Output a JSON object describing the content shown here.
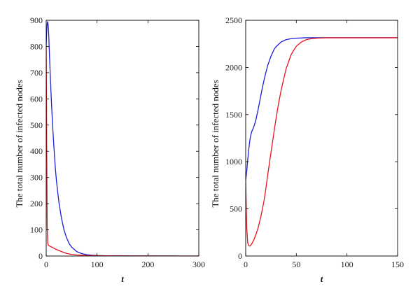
{
  "chart_data": [
    {
      "type": "line",
      "xlabel": "t",
      "ylabel": "The total number of infected nodes",
      "xlim": [
        0,
        300
      ],
      "ylim": [
        0,
        900
      ],
      "xticks": [
        0,
        100,
        200,
        300
      ],
      "yticks": [
        0,
        100,
        200,
        300,
        400,
        500,
        600,
        700,
        800,
        900
      ],
      "grid": false,
      "series": [
        {
          "color": "#1f1fd6",
          "x": [
            0,
            1,
            2,
            3,
            4,
            5,
            6,
            8,
            10,
            12,
            15,
            18,
            20,
            25,
            30,
            35,
            40,
            45,
            50,
            60,
            70,
            80,
            90,
            100,
            120,
            150,
            200,
            250,
            300
          ],
          "y": [
            800,
            860,
            888,
            895,
            880,
            845,
            790,
            690,
            600,
            520,
            420,
            335,
            290,
            205,
            145,
            100,
            70,
            48,
            34,
            17,
            9,
            5,
            3,
            2,
            1,
            0.5,
            0.2,
            0.1,
            0
          ]
        },
        {
          "color": "#e8131d",
          "x": [
            0,
            1,
            2,
            3,
            4,
            5,
            7,
            10,
            15,
            20,
            30,
            40,
            50,
            60,
            80,
            100,
            150,
            200,
            300
          ],
          "y": [
            800,
            420,
            110,
            50,
            42,
            40,
            38,
            35,
            30,
            25,
            17,
            10,
            6,
            4,
            2,
            1,
            0.5,
            0.2,
            0
          ]
        }
      ]
    },
    {
      "type": "line",
      "xlabel": "t",
      "ylabel": "The total number of infected nodes",
      "xlim": [
        0,
        150
      ],
      "ylim": [
        0,
        2500
      ],
      "xticks": [
        0,
        50,
        100,
        150
      ],
      "yticks": [
        0,
        500,
        1000,
        1500,
        2000,
        2500
      ],
      "grid": false,
      "series": [
        {
          "color": "#1f1fd6",
          "x": [
            0,
            1,
            2,
            3,
            4,
            5,
            6,
            8,
            10,
            12,
            14,
            16,
            18,
            20,
            22,
            25,
            28,
            30,
            35,
            40,
            45,
            50,
            60,
            70,
            80,
            100,
            150
          ],
          "y": [
            800,
            900,
            1020,
            1130,
            1220,
            1280,
            1320,
            1370,
            1440,
            1540,
            1650,
            1760,
            1860,
            1950,
            2030,
            2120,
            2190,
            2220,
            2270,
            2295,
            2305,
            2310,
            2315,
            2315,
            2315,
            2315,
            2315
          ]
        },
        {
          "color": "#e8131d",
          "x": [
            0,
            0.5,
            1,
            2,
            3,
            4,
            5,
            6,
            8,
            10,
            12,
            15,
            18,
            20,
            22,
            25,
            28,
            30,
            32,
            35,
            40,
            45,
            50,
            55,
            60,
            65,
            70,
            80,
            90,
            100,
            150
          ],
          "y": [
            800,
            550,
            300,
            140,
            110,
            105,
            115,
            130,
            170,
            225,
            290,
            420,
            580,
            720,
            880,
            1100,
            1320,
            1460,
            1590,
            1760,
            1990,
            2140,
            2225,
            2270,
            2295,
            2305,
            2310,
            2315,
            2315,
            2315,
            2315
          ]
        }
      ]
    }
  ]
}
